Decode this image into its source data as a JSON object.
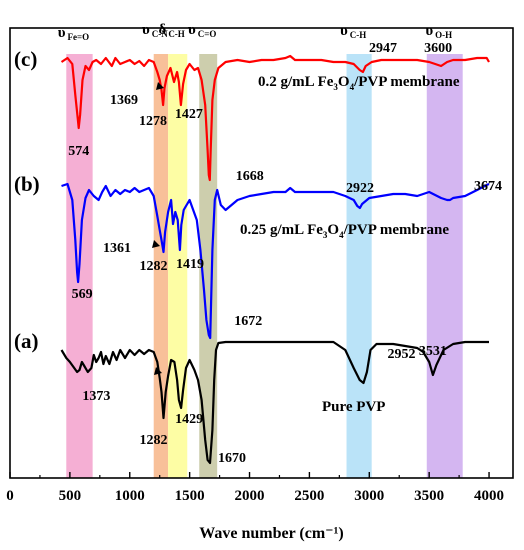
{
  "chart_data": {
    "type": "line",
    "xlabel": "Wave number",
    "xlabel_unit": "(cm⁻¹)",
    "xlim": [
      0,
      4200
    ],
    "xticks": [
      0,
      500,
      1000,
      1500,
      2000,
      2500,
      3000,
      3500,
      4000
    ],
    "xtick_labels": [
      "0",
      "500",
      "1000",
      "1500",
      "2000",
      "2500",
      "3000",
      "3500",
      "4000"
    ],
    "ylabel": "",
    "grid": false,
    "bands": [
      {
        "range": [
          470,
          690
        ],
        "color": "#f4a6cf",
        "symbol": "υ",
        "sub": "Fe=O"
      },
      {
        "range": [
          1200,
          1320
        ],
        "color": "#f7b98e",
        "symbol": "υ",
        "sub": "C-N"
      },
      {
        "range": [
          1320,
          1480
        ],
        "color": "#fdfd9a",
        "symbol": "δ",
        "sub": "C-H"
      },
      {
        "range": [
          1580,
          1730
        ],
        "color": "#c8c9a4",
        "symbol": "υ",
        "sub": "C=O"
      },
      {
        "range": [
          2810,
          3020
        ],
        "color": "#b3e0f7",
        "symbol": "υ",
        "sub": "C-H"
      },
      {
        "range": [
          3480,
          3780
        ],
        "color": "#cfaef0",
        "symbol": "υ",
        "sub": "O-H"
      }
    ],
    "series": [
      {
        "tag": "(c)",
        "name": "0.2 g/mL Fe₃O₄/PVP membrane",
        "name_main": "0.2 g/mL Fe",
        "name_sub1": "3",
        "name_mid": "O",
        "name_sub2": "4",
        "name_end": "/PVP membrane",
        "color": "#ff0000",
        "baseline": 60,
        "points": [
          [
            430,
            62
          ],
          [
            480,
            58
          ],
          [
            520,
            64
          ],
          [
            545,
            95
          ],
          [
            565,
            118
          ],
          [
            574,
            128
          ],
          [
            585,
            115
          ],
          [
            605,
            80
          ],
          [
            630,
            66
          ],
          [
            660,
            70
          ],
          [
            690,
            62
          ],
          [
            720,
            60
          ],
          [
            760,
            64
          ],
          [
            800,
            58
          ],
          [
            850,
            66
          ],
          [
            880,
            58
          ],
          [
            920,
            64
          ],
          [
            960,
            62
          ],
          [
            1000,
            60
          ],
          [
            1040,
            64
          ],
          [
            1080,
            61
          ],
          [
            1120,
            66
          ],
          [
            1160,
            60
          ],
          [
            1200,
            62
          ],
          [
            1230,
            72
          ],
          [
            1250,
            80
          ],
          [
            1265,
            90
          ],
          [
            1278,
            105
          ],
          [
            1290,
            88
          ],
          [
            1310,
            76
          ],
          [
            1340,
            68
          ],
          [
            1369,
            82
          ],
          [
            1395,
            72
          ],
          [
            1410,
            82
          ],
          [
            1427,
            105
          ],
          [
            1445,
            84
          ],
          [
            1470,
            70
          ],
          [
            1500,
            64
          ],
          [
            1540,
            70
          ],
          [
            1570,
            68
          ],
          [
            1600,
            80
          ],
          [
            1630,
            105
          ],
          [
            1650,
            150
          ],
          [
            1660,
            175
          ],
          [
            1668,
            180
          ],
          [
            1676,
            150
          ],
          [
            1690,
            100
          ],
          [
            1710,
            80
          ],
          [
            1740,
            68
          ],
          [
            1800,
            62
          ],
          [
            1900,
            60
          ],
          [
            2000,
            62
          ],
          [
            2100,
            60
          ],
          [
            2200,
            60
          ],
          [
            2300,
            58
          ],
          [
            2340,
            56
          ],
          [
            2380,
            60
          ],
          [
            2500,
            60
          ],
          [
            2600,
            60
          ],
          [
            2700,
            62
          ],
          [
            2800,
            62
          ],
          [
            2870,
            64
          ],
          [
            2920,
            70
          ],
          [
            2947,
            72
          ],
          [
            2970,
            66
          ],
          [
            3020,
            62
          ],
          [
            3100,
            60
          ],
          [
            3200,
            60
          ],
          [
            3300,
            60
          ],
          [
            3400,
            60
          ],
          [
            3500,
            62
          ],
          [
            3550,
            64
          ],
          [
            3600,
            66
          ],
          [
            3650,
            62
          ],
          [
            3700,
            60
          ],
          [
            3800,
            60
          ],
          [
            3900,
            58
          ],
          [
            3980,
            58
          ],
          [
            4000,
            62
          ]
        ]
      },
      {
        "tag": "(b)",
        "name": "0.25 g/mL Fe₃O₄/PVP membrane",
        "name_main": "0.25 g/mL Fe",
        "name_sub1": "3",
        "name_mid": "O",
        "name_sub2": "4",
        "name_end": "/PVP membrane",
        "color": "#0000ff",
        "baseline": 185,
        "points": [
          [
            430,
            186
          ],
          [
            480,
            184
          ],
          [
            520,
            200
          ],
          [
            545,
            240
          ],
          [
            560,
            272
          ],
          [
            569,
            282
          ],
          [
            580,
            264
          ],
          [
            600,
            220
          ],
          [
            630,
            198
          ],
          [
            660,
            190
          ],
          [
            700,
            196
          ],
          [
            740,
            200
          ],
          [
            770,
            192
          ],
          [
            800,
            186
          ],
          [
            840,
            196
          ],
          [
            880,
            190
          ],
          [
            920,
            194
          ],
          [
            960,
            190
          ],
          [
            1000,
            192
          ],
          [
            1040,
            188
          ],
          [
            1080,
            192
          ],
          [
            1120,
            190
          ],
          [
            1160,
            188
          ],
          [
            1200,
            196
          ],
          [
            1230,
            216
          ],
          [
            1250,
            230
          ],
          [
            1265,
            240
          ],
          [
            1282,
            252
          ],
          [
            1295,
            232
          ],
          [
            1320,
            212
          ],
          [
            1345,
            200
          ],
          [
            1361,
            224
          ],
          [
            1380,
            212
          ],
          [
            1400,
            220
          ],
          [
            1419,
            250
          ],
          [
            1430,
            225
          ],
          [
            1450,
            210
          ],
          [
            1475,
            205
          ],
          [
            1500,
            200
          ],
          [
            1530,
            210
          ],
          [
            1560,
            220
          ],
          [
            1590,
            250
          ],
          [
            1620,
            290
          ],
          [
            1640,
            320
          ],
          [
            1660,
            335
          ],
          [
            1672,
            338
          ],
          [
            1690,
            250
          ],
          [
            1710,
            200
          ],
          [
            1730,
            190
          ],
          [
            1760,
            205
          ],
          [
            1800,
            210
          ],
          [
            1900,
            200
          ],
          [
            2000,
            196
          ],
          [
            2100,
            194
          ],
          [
            2200,
            192
          ],
          [
            2300,
            192
          ],
          [
            2340,
            188
          ],
          [
            2380,
            192
          ],
          [
            2500,
            192
          ],
          [
            2600,
            192
          ],
          [
            2700,
            192
          ],
          [
            2800,
            196
          ],
          [
            2870,
            200
          ],
          [
            2900,
            206
          ],
          [
            2922,
            208
          ],
          [
            2940,
            204
          ],
          [
            3000,
            198
          ],
          [
            3100,
            196
          ],
          [
            3200,
            194
          ],
          [
            3300,
            194
          ],
          [
            3400,
            196
          ],
          [
            3500,
            192
          ],
          [
            3600,
            198
          ],
          [
            3650,
            200
          ],
          [
            3674,
            200
          ],
          [
            3700,
            198
          ],
          [
            3800,
            196
          ],
          [
            3900,
            190
          ],
          [
            3980,
            185
          ],
          [
            4000,
            184
          ]
        ]
      },
      {
        "tag": "(a)",
        "name": "Pure PVP",
        "color": "#000000",
        "baseline": 342,
        "points": [
          [
            430,
            350
          ],
          [
            470,
            358
          ],
          [
            500,
            362
          ],
          [
            530,
            367
          ],
          [
            560,
            372
          ],
          [
            580,
            370
          ],
          [
            600,
            362
          ],
          [
            620,
            366
          ],
          [
            650,
            372
          ],
          [
            680,
            368
          ],
          [
            700,
            355
          ],
          [
            720,
            362
          ],
          [
            740,
            358
          ],
          [
            760,
            352
          ],
          [
            780,
            364
          ],
          [
            800,
            356
          ],
          [
            830,
            364
          ],
          [
            860,
            352
          ],
          [
            890,
            360
          ],
          [
            920,
            350
          ],
          [
            960,
            358
          ],
          [
            1000,
            350
          ],
          [
            1040,
            355
          ],
          [
            1080,
            350
          ],
          [
            1120,
            354
          ],
          [
            1160,
            350
          ],
          [
            1200,
            352
          ],
          [
            1230,
            362
          ],
          [
            1250,
            378
          ],
          [
            1265,
            392
          ],
          [
            1282,
            418
          ],
          [
            1300,
            392
          ],
          [
            1320,
            376
          ],
          [
            1345,
            360
          ],
          [
            1373,
            362
          ],
          [
            1395,
            380
          ],
          [
            1410,
            400
          ],
          [
            1429,
            408
          ],
          [
            1445,
            390
          ],
          [
            1470,
            368
          ],
          [
            1500,
            360
          ],
          [
            1540,
            370
          ],
          [
            1570,
            380
          ],
          [
            1600,
            400
          ],
          [
            1630,
            440
          ],
          [
            1650,
            460
          ],
          [
            1670,
            463
          ],
          [
            1690,
            430
          ],
          [
            1705,
            380
          ],
          [
            1720,
            350
          ],
          [
            1740,
            343
          ],
          [
            1800,
            342
          ],
          [
            1900,
            342
          ],
          [
            2000,
            342
          ],
          [
            2200,
            342
          ],
          [
            2400,
            342
          ],
          [
            2600,
            342
          ],
          [
            2700,
            342
          ],
          [
            2800,
            350
          ],
          [
            2870,
            368
          ],
          [
            2920,
            380
          ],
          [
            2952,
            383
          ],
          [
            2980,
            372
          ],
          [
            3010,
            350
          ],
          [
            3060,
            344
          ],
          [
            3200,
            344
          ],
          [
            3400,
            348
          ],
          [
            3450,
            352
          ],
          [
            3500,
            362
          ],
          [
            3531,
            375
          ],
          [
            3560,
            365
          ],
          [
            3620,
            350
          ],
          [
            3700,
            344
          ],
          [
            3800,
            342
          ],
          [
            3900,
            342
          ],
          [
            4000,
            342
          ]
        ]
      }
    ],
    "peak_labels": [
      {
        "text": "574",
        "x": 574,
        "curve": "c"
      },
      {
        "text": "1369",
        "x": 1369,
        "curve": "c"
      },
      {
        "text": "1278",
        "x": 1278,
        "curve": "c"
      },
      {
        "text": "1427",
        "x": 1427,
        "curve": "c"
      },
      {
        "text": "1668",
        "x": 1668,
        "curve": "c"
      },
      {
        "text": "2947",
        "x": 2947,
        "curve": "c"
      },
      {
        "text": "3600",
        "x": 3600,
        "curve": "c"
      },
      {
        "text": "569",
        "x": 569,
        "curve": "b"
      },
      {
        "text": "1361",
        "x": 1361,
        "curve": "b"
      },
      {
        "text": "1282",
        "x": 1282,
        "curve": "b"
      },
      {
        "text": "1419",
        "x": 1419,
        "curve": "b"
      },
      {
        "text": "1672",
        "x": 1672,
        "curve": "b"
      },
      {
        "text": "2922",
        "x": 2922,
        "curve": "b"
      },
      {
        "text": "3674",
        "x": 3674,
        "curve": "b"
      },
      {
        "text": "1373",
        "x": 1373,
        "curve": "a"
      },
      {
        "text": "1282",
        "x": 1282,
        "curve": "a"
      },
      {
        "text": "1429",
        "x": 1429,
        "curve": "a"
      },
      {
        "text": "1670",
        "x": 1670,
        "curve": "a"
      },
      {
        "text": "2952",
        "x": 2952,
        "curve": "a"
      },
      {
        "text": "3531",
        "x": 3531,
        "curve": "a"
      }
    ]
  }
}
